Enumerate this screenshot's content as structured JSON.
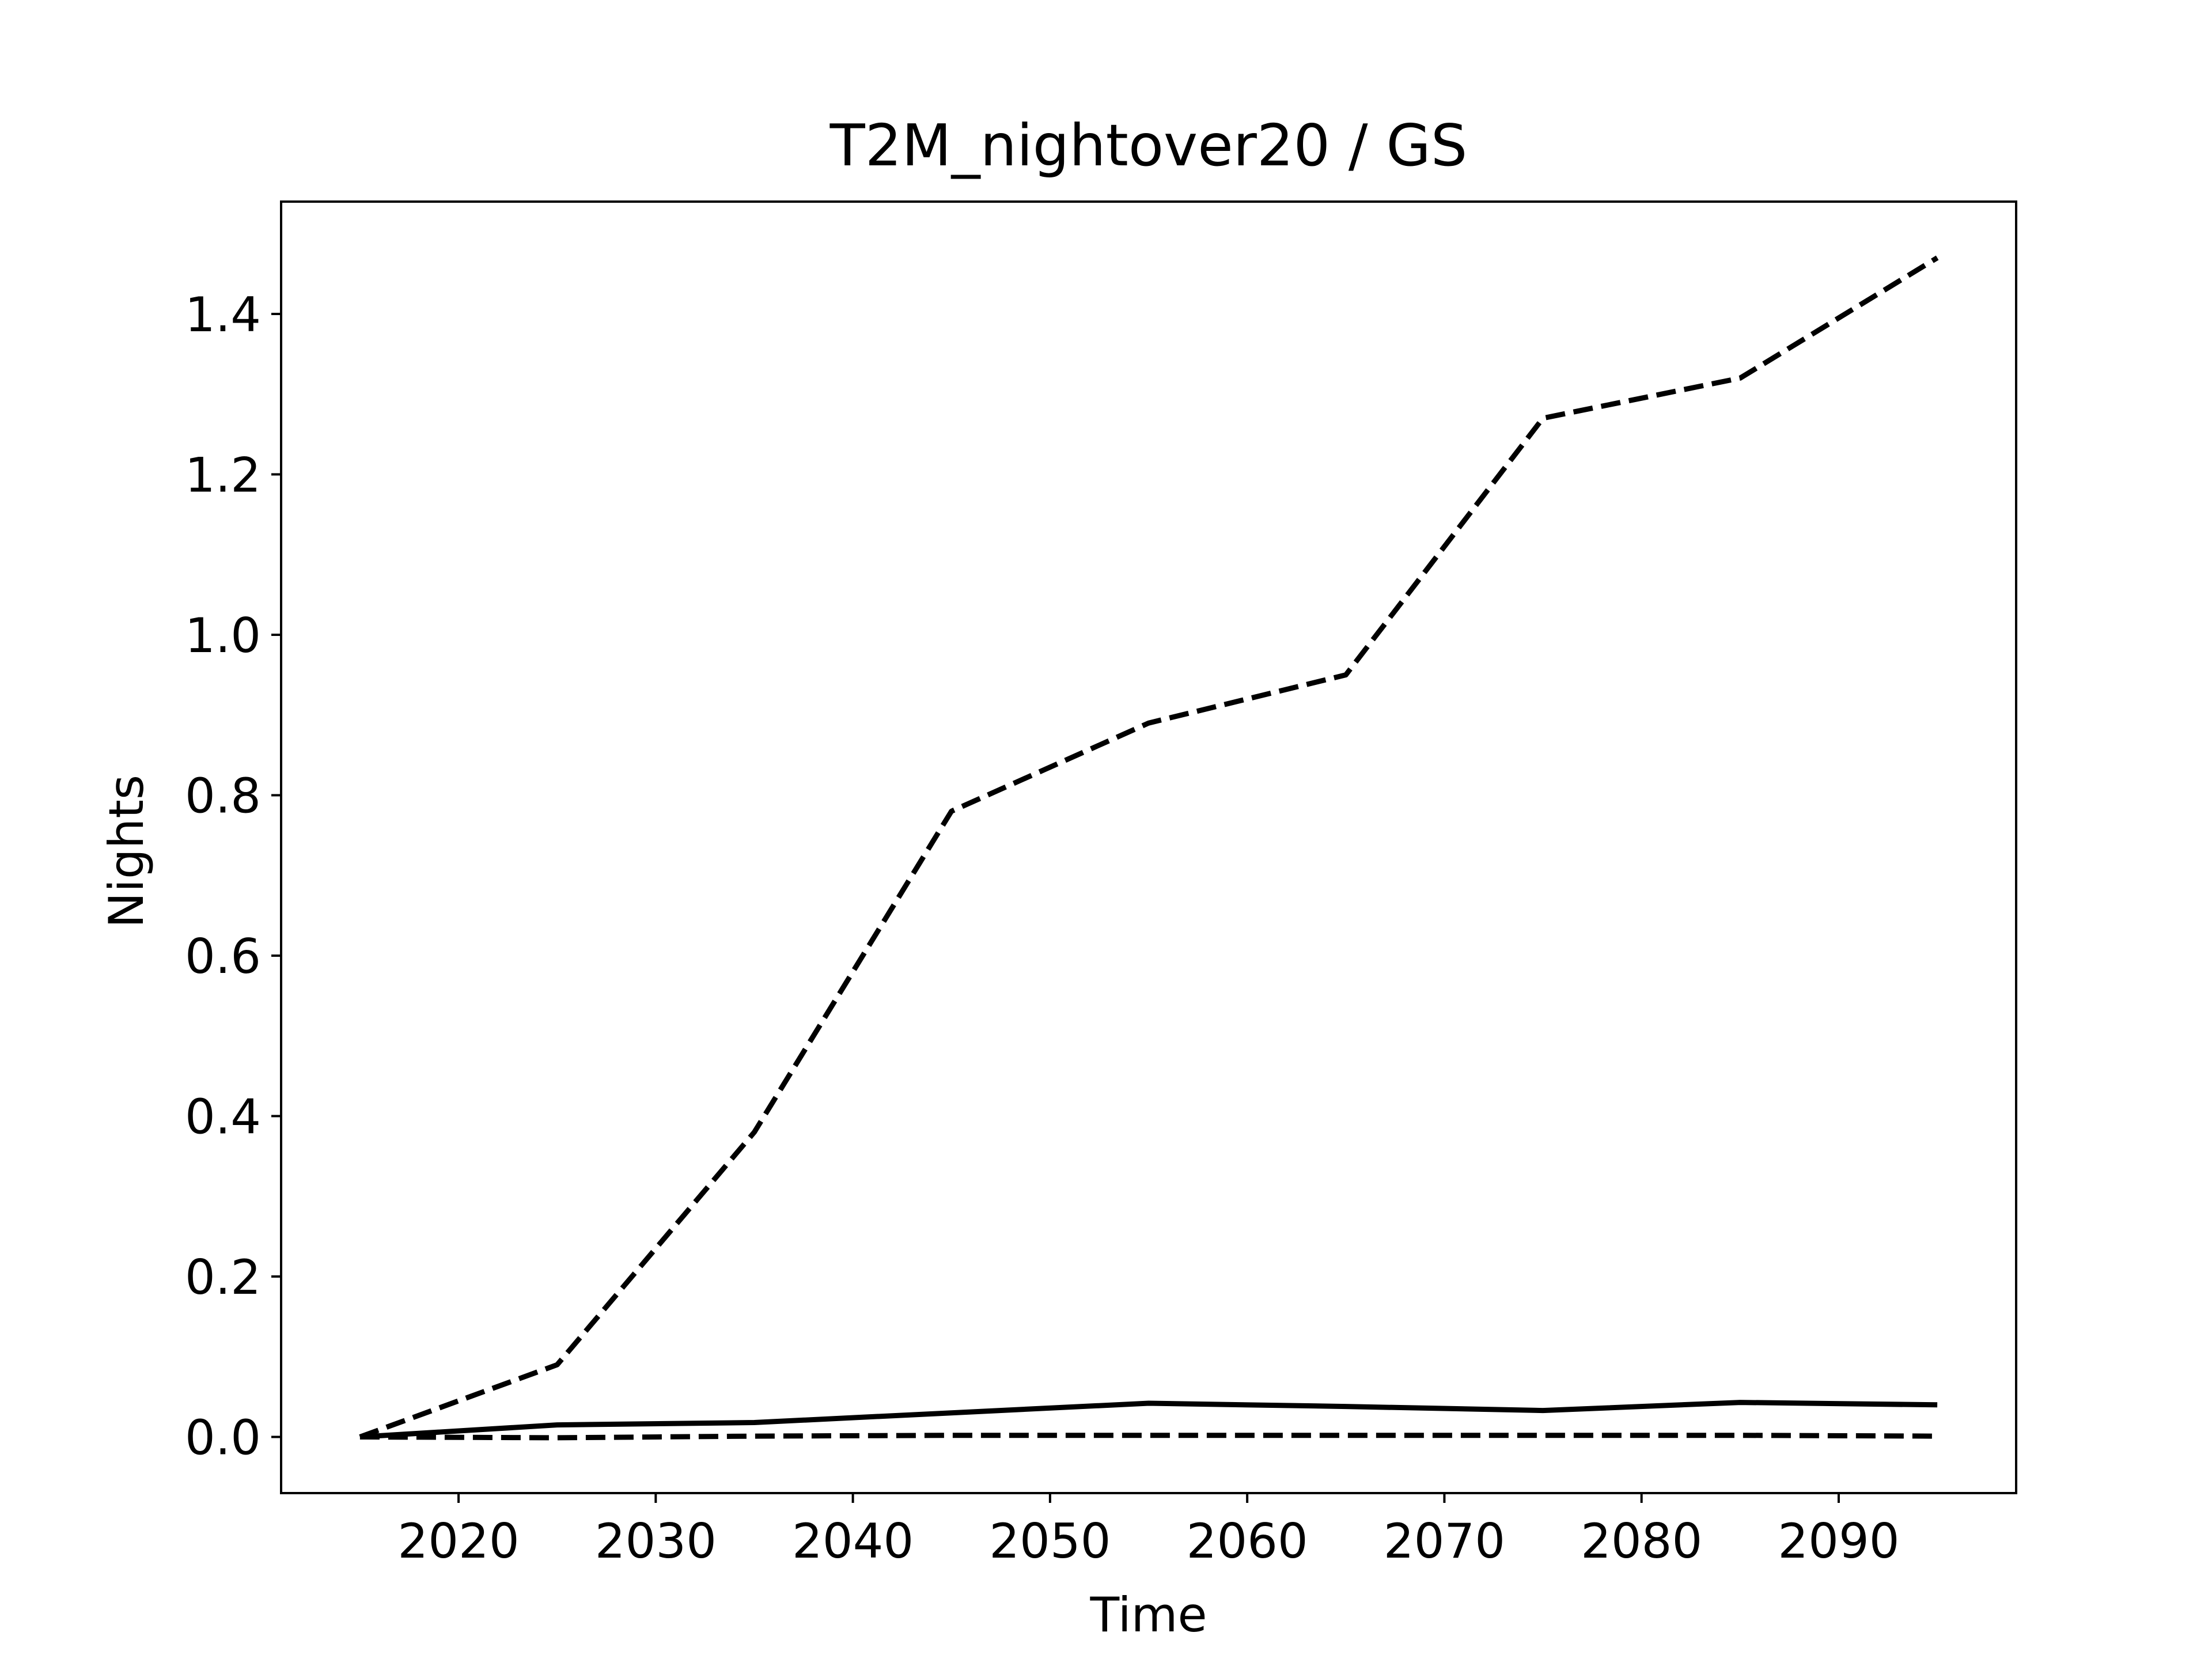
{
  "chart_data": {
    "type": "line",
    "title": "T2M_nightover20 / GS",
    "xlabel": "Time",
    "ylabel": "Nights",
    "xlim": [
      2011,
      2099
    ],
    "ylim": [
      -0.07,
      1.54
    ],
    "xticks": [
      2020,
      2030,
      2040,
      2050,
      2060,
      2070,
      2080,
      2090
    ],
    "yticks": [
      0.0,
      0.2,
      0.4,
      0.6,
      0.8,
      1.0,
      1.2,
      1.4
    ],
    "grid": false,
    "legend": "none",
    "x": [
      2015,
      2025,
      2035,
      2045,
      2055,
      2065,
      2075,
      2085,
      2095
    ],
    "series": [
      {
        "style": "dashed",
        "color": "#000000",
        "values": [
          0.0,
          0.09,
          0.38,
          0.78,
          0.89,
          0.95,
          1.27,
          1.32,
          1.47
        ]
      },
      {
        "style": "solid",
        "color": "#000000",
        "values": [
          0.0,
          0.015,
          0.018,
          0.03,
          0.042,
          0.038,
          0.033,
          0.043,
          0.04
        ]
      },
      {
        "style": "dashed",
        "color": "#000000",
        "values": [
          0.0,
          -0.001,
          0.001,
          0.002,
          0.002,
          0.002,
          0.002,
          0.002,
          0.001
        ]
      }
    ]
  }
}
